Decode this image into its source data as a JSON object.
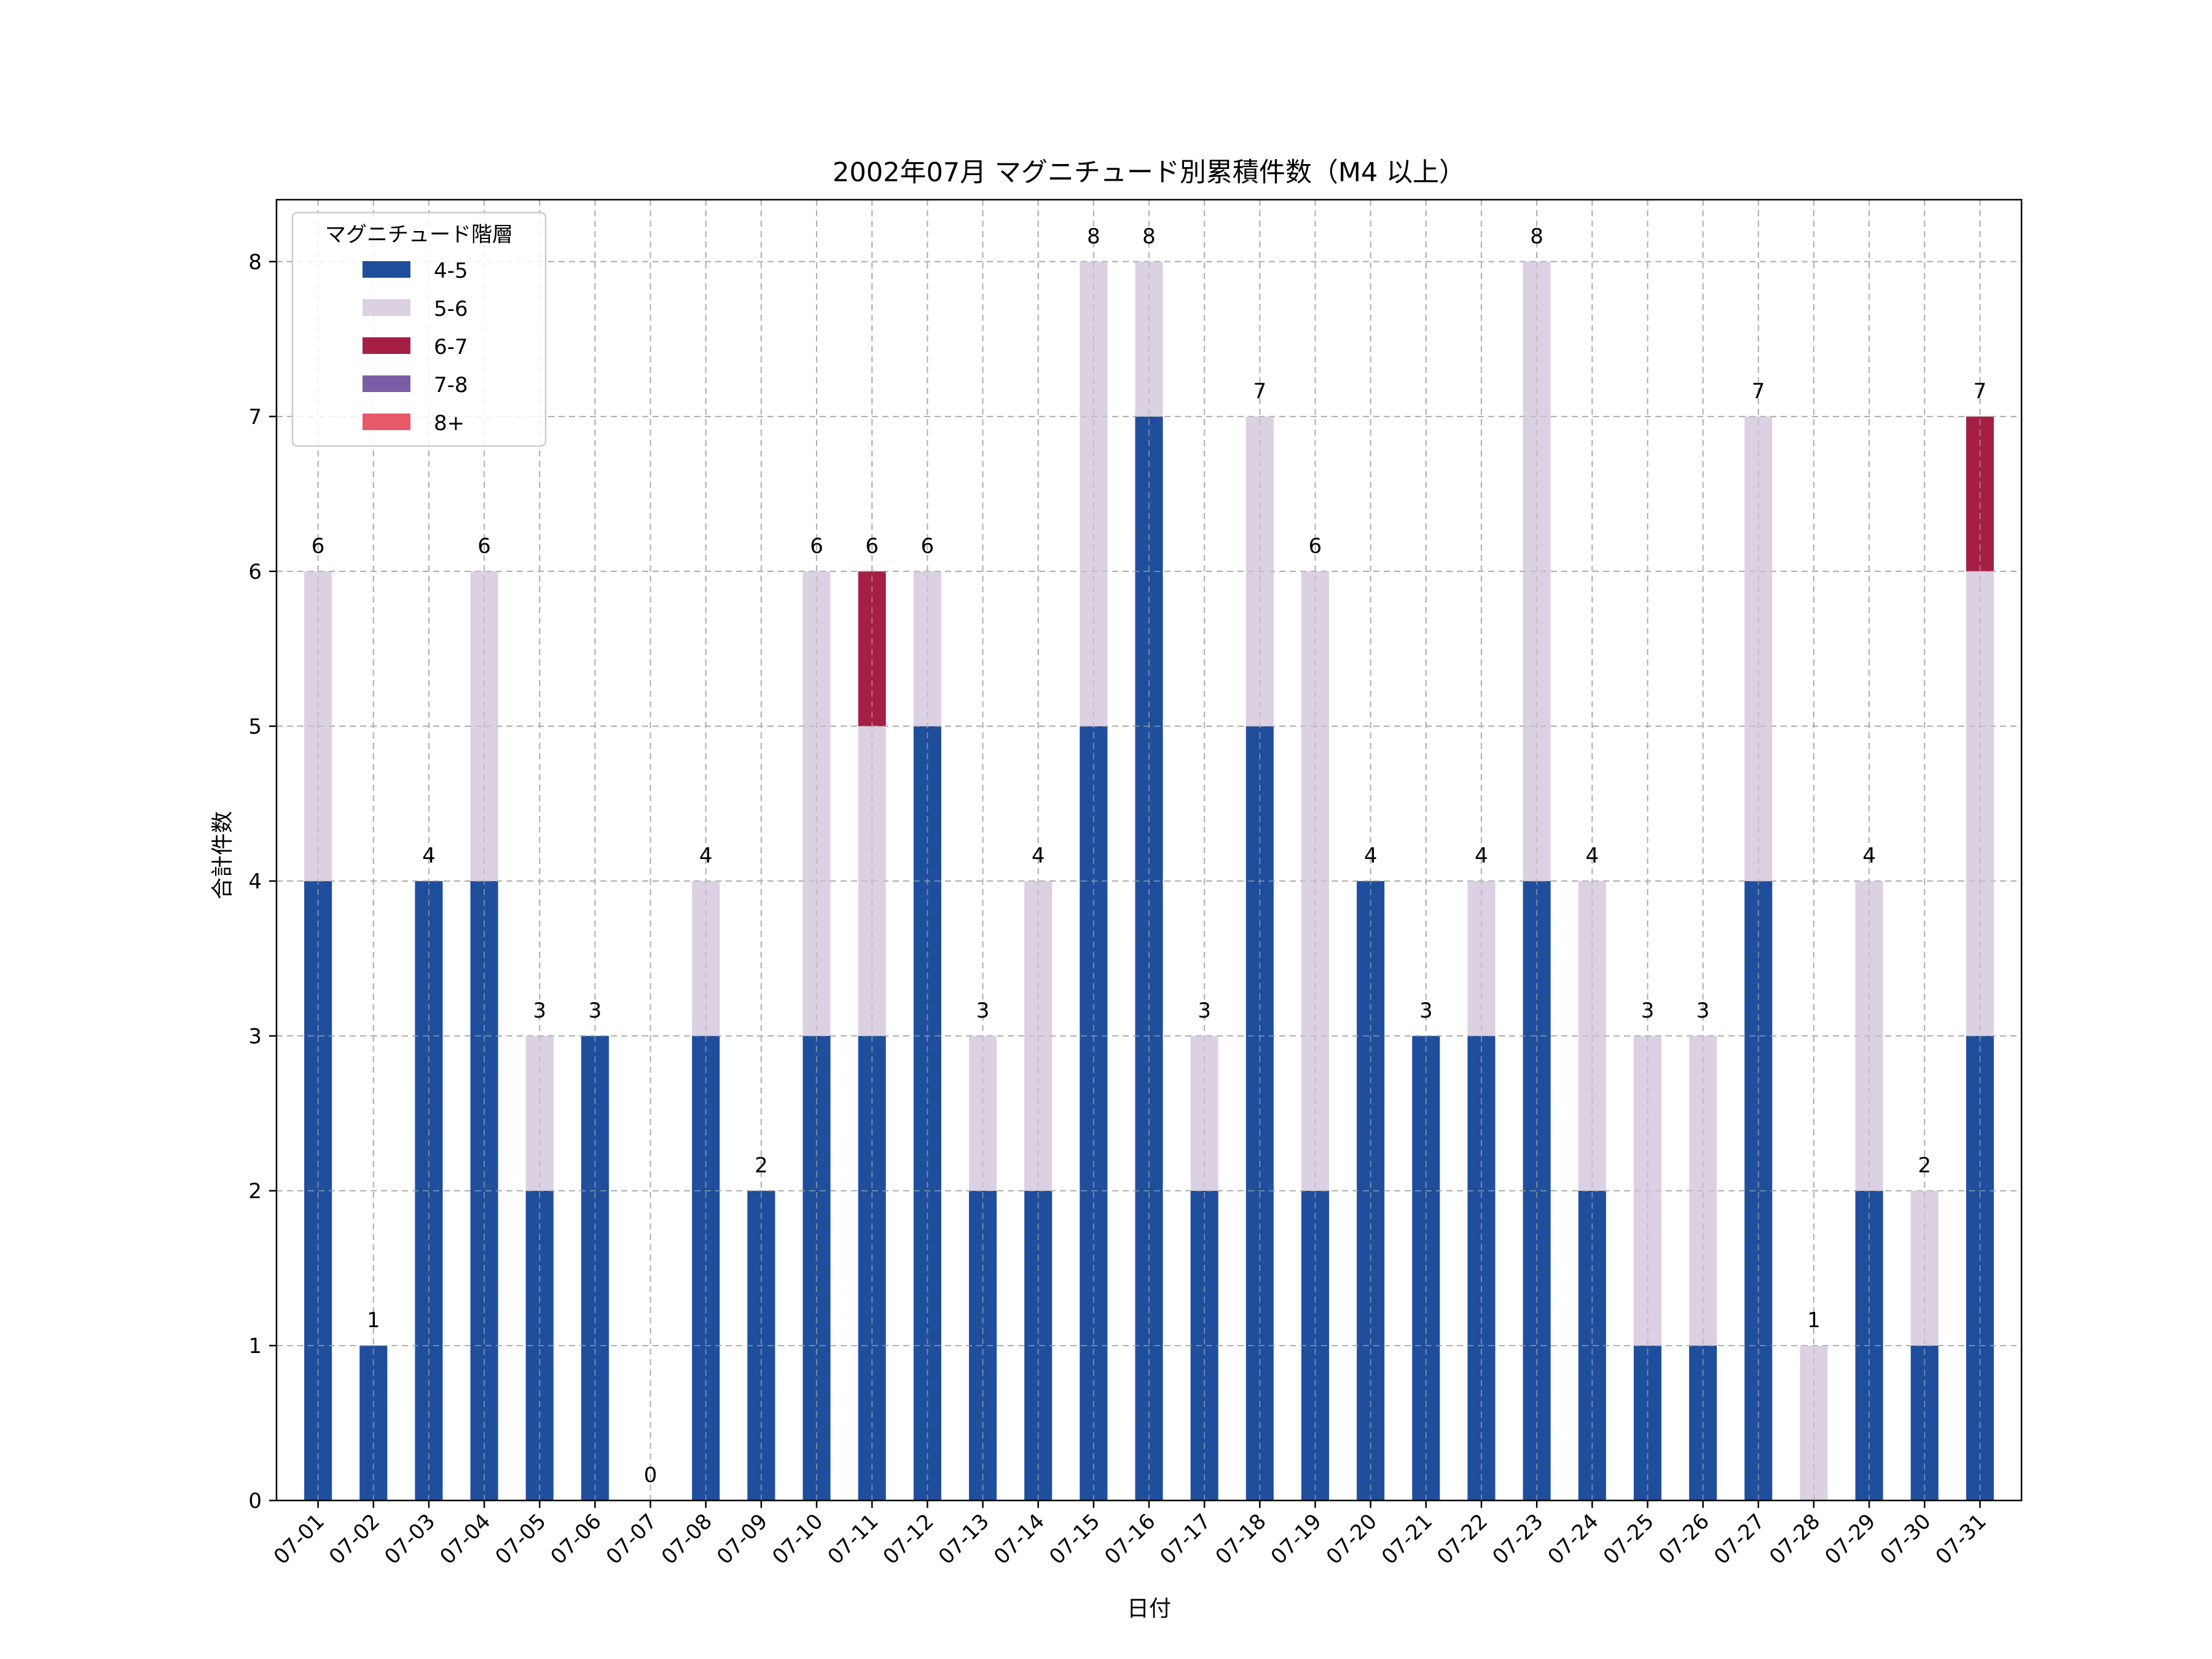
{
  "chart_data": {
    "type": "bar",
    "stacked": true,
    "title": "2002年07月 マグニチュード別累積件数（M4 以上）",
    "xlabel": "日付",
    "ylabel": "合計件数",
    "ylim": [
      0,
      8.4
    ],
    "yticks": [
      0,
      1,
      2,
      3,
      4,
      5,
      6,
      7,
      8
    ],
    "grid": true,
    "legend_title": "マグニチュード階層",
    "legend_position": "top-left",
    "categories": [
      "07-01",
      "07-02",
      "07-03",
      "07-04",
      "07-05",
      "07-06",
      "07-07",
      "07-08",
      "07-09",
      "07-10",
      "07-11",
      "07-12",
      "07-13",
      "07-14",
      "07-15",
      "07-16",
      "07-17",
      "07-18",
      "07-19",
      "07-20",
      "07-21",
      "07-22",
      "07-23",
      "07-24",
      "07-25",
      "07-26",
      "07-27",
      "07-28",
      "07-29",
      "07-30",
      "07-31"
    ],
    "series": [
      {
        "name": "4-5",
        "color": "#1f4e9c",
        "values": [
          4,
          1,
          4,
          4,
          2,
          3,
          0,
          3,
          2,
          3,
          3,
          5,
          2,
          2,
          5,
          7,
          2,
          5,
          2,
          4,
          3,
          3,
          4,
          2,
          1,
          1,
          4,
          0,
          2,
          1,
          3
        ]
      },
      {
        "name": "5-6",
        "color": "#dcd0e3",
        "values": [
          2,
          0,
          0,
          2,
          1,
          0,
          0,
          1,
          0,
          3,
          2,
          1,
          1,
          2,
          3,
          1,
          1,
          2,
          4,
          0,
          0,
          1,
          4,
          2,
          2,
          2,
          3,
          1,
          2,
          1,
          3
        ]
      },
      {
        "name": "6-7",
        "color": "#a51f45",
        "values": [
          0,
          0,
          0,
          0,
          0,
          0,
          0,
          0,
          0,
          0,
          1,
          0,
          0,
          0,
          0,
          0,
          0,
          0,
          0,
          0,
          0,
          0,
          0,
          0,
          0,
          0,
          0,
          0,
          0,
          0,
          1
        ]
      },
      {
        "name": "7-8",
        "color": "#7a5ea8",
        "values": [
          0,
          0,
          0,
          0,
          0,
          0,
          0,
          0,
          0,
          0,
          0,
          0,
          0,
          0,
          0,
          0,
          0,
          0,
          0,
          0,
          0,
          0,
          0,
          0,
          0,
          0,
          0,
          0,
          0,
          0,
          0
        ]
      },
      {
        "name": "8+",
        "color": "#e85a6a",
        "values": [
          0,
          0,
          0,
          0,
          0,
          0,
          0,
          0,
          0,
          0,
          0,
          0,
          0,
          0,
          0,
          0,
          0,
          0,
          0,
          0,
          0,
          0,
          0,
          0,
          0,
          0,
          0,
          0,
          0,
          0,
          0
        ]
      }
    ],
    "totals": [
      6,
      1,
      4,
      6,
      3,
      3,
      0,
      4,
      2,
      6,
      6,
      6,
      3,
      4,
      8,
      8,
      3,
      7,
      6,
      4,
      3,
      4,
      8,
      4,
      3,
      3,
      7,
      1,
      4,
      2,
      7
    ]
  }
}
